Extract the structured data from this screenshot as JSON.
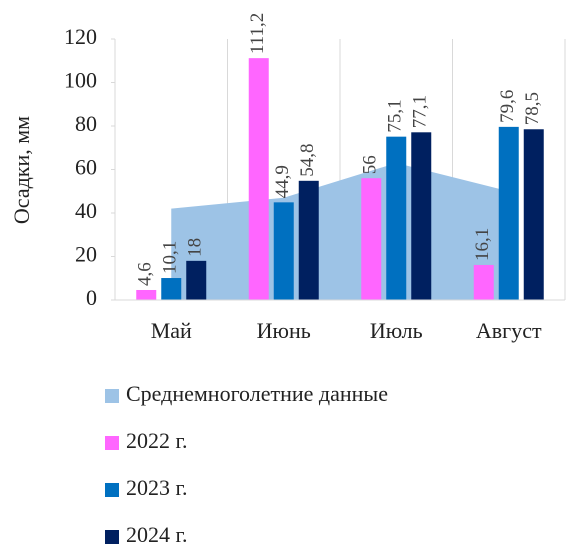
{
  "chart_data": {
    "type": "bar",
    "ylabel": "Осадки, мм",
    "categories": [
      "Май",
      "Июнь",
      "Июль",
      "Август"
    ],
    "series": [
      {
        "name": "Среднемноголетние данные",
        "type": "area",
        "color": "#9dc3e6",
        "values": [
          42,
          47,
          63,
          50
        ]
      },
      {
        "name": "2022 г.",
        "type": "bar",
        "color": "#ff66ff",
        "values": [
          4.6,
          111.2,
          56,
          16.1
        ],
        "value_labels": [
          "4,6",
          "111,2",
          "56",
          "16,1"
        ]
      },
      {
        "name": "2023 г.",
        "type": "bar",
        "color": "#0070c0",
        "values": [
          10.1,
          44.9,
          75.1,
          79.6
        ],
        "value_labels": [
          "10,1",
          "44,9",
          "75,1",
          "79,6"
        ]
      },
      {
        "name": "2024 г.",
        "type": "bar",
        "color": "#002060",
        "values": [
          18,
          54.8,
          77.1,
          78.5
        ],
        "value_labels": [
          "18",
          "54,8",
          "77,1",
          "78,5"
        ]
      }
    ],
    "ylim": [
      0,
      120
    ],
    "yticks": [
      0,
      20,
      40,
      60,
      80,
      100,
      120
    ],
    "legend": "bottom"
  }
}
